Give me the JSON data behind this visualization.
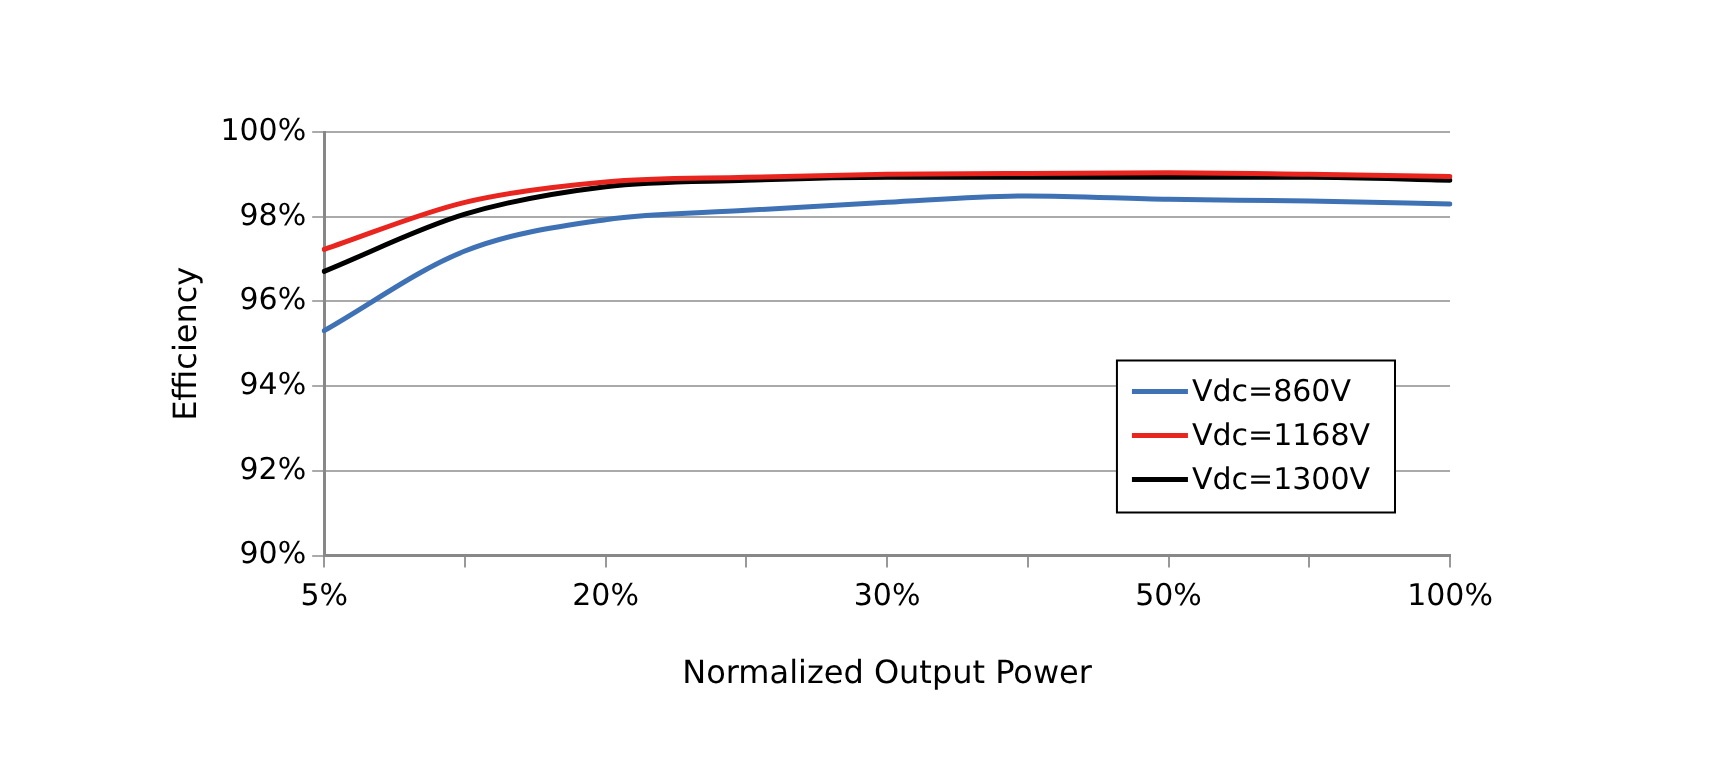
{
  "chart_data": {
    "type": "line",
    "xlabel": "Normalized Output Power",
    "ylabel": "Efficiency",
    "categories": [
      "5%",
      null,
      "20%",
      null,
      "30%",
      null,
      "50%",
      null,
      "100%"
    ],
    "series": [
      {
        "name": "Vdc=860V",
        "color": "#3f72b5",
        "values": [
          95.31,
          97.19,
          97.93,
          98.15,
          98.34,
          98.49,
          98.41,
          98.37,
          98.3
        ]
      },
      {
        "name": "Vdc=1168V",
        "color": "#e8251f",
        "values": [
          97.23,
          98.34,
          98.82,
          98.93,
          99.0,
          99.02,
          99.04,
          99.0,
          98.95
        ]
      },
      {
        "name": "Vdc=1300V",
        "color": "#000000",
        "values": [
          96.71,
          98.06,
          98.71,
          98.86,
          98.93,
          98.93,
          98.93,
          98.93,
          98.86
        ]
      }
    ],
    "ylim": [
      90,
      100
    ],
    "yticks": [
      {
        "value": 90,
        "label": "90%"
      },
      {
        "value": 92,
        "label": "92%"
      },
      {
        "value": 94,
        "label": "94%"
      },
      {
        "value": 96,
        "label": "96%"
      },
      {
        "value": 98,
        "label": "98%"
      },
      {
        "value": 100,
        "label": "100%"
      }
    ],
    "grid": "y",
    "legend": "bottom right",
    "marker": "none",
    "line_style": "solid"
  }
}
